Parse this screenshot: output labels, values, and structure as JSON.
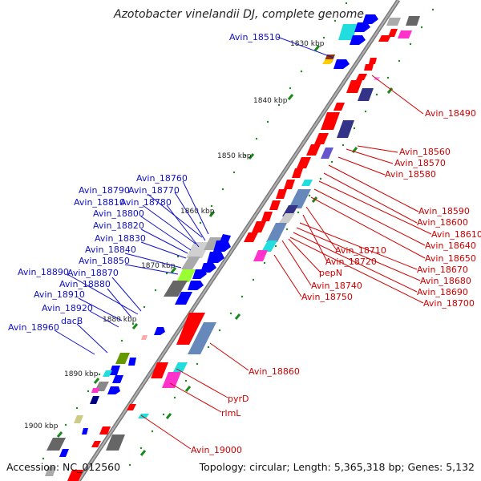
{
  "title": "Azotobacter vinelandii DJ, complete genome",
  "accession": "Accession: NC_012560",
  "topology": "Topology: circular; Length: 5,365,318 bp; Genes: 5,132",
  "scale_labels": [
    "1830 kbp",
    "1840 kbp",
    "1850 kbp",
    "1860 kbp",
    "1870 kbp",
    "1880 kbp",
    "1890 kbp",
    "1900 kbp"
  ],
  "left_labels": [
    "Avin_18510",
    "Avin_18760",
    "Avin_18790",
    "Avin_18770",
    "Avin_18810",
    "Avin_18780",
    "Avin_18800",
    "Avin_18820",
    "Avin_18830",
    "Avin_18840",
    "Avin_18850",
    "Avin_18890",
    "Avin_18870",
    "Avin_18880",
    "Avin_18910",
    "Avin_18920",
    "dacB",
    "Avin_18960"
  ],
  "right_labels": [
    "Avin_18490",
    "Avin_18560",
    "Avin_18570",
    "Avin_18580",
    "Avin_18590",
    "Avin_18600",
    "Avin_18610",
    "Avin_18640",
    "Avin_18650",
    "Avin_18710",
    "Avin_18720",
    "Avin_18670",
    "pepN",
    "Avin_18680",
    "Avin_18690",
    "Avin_18740",
    "Avin_18700",
    "Avin_18750",
    "Avin_18860",
    "pyrD",
    "rlmL",
    "Avin_19000"
  ],
  "colors": {
    "forward": "#ff0000",
    "reverse": "#0000ff",
    "label_forward": "#d00000",
    "label_reverse": "#1010c8",
    "backbone": "#888888",
    "ticks": "#1a8a1a"
  }
}
